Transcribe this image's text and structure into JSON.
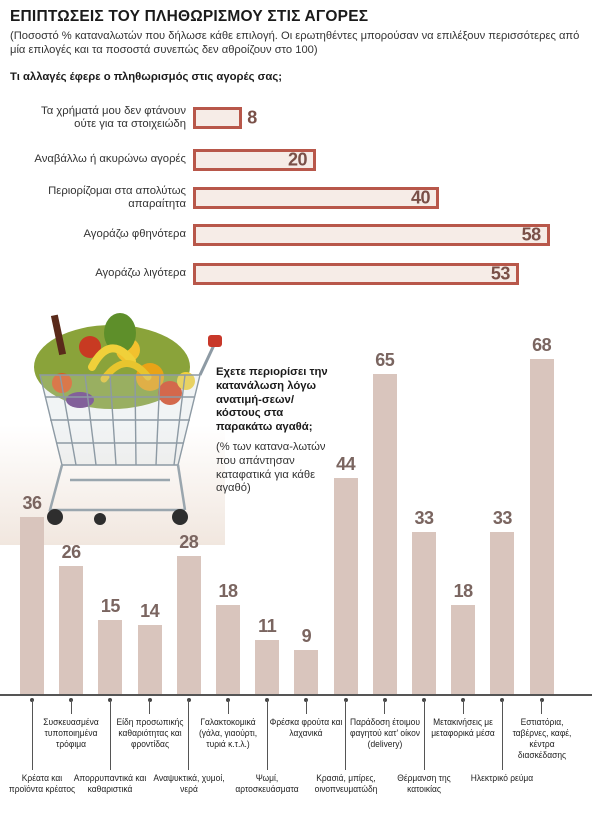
{
  "header": {
    "title": "ΕΠΙΠΤΩΣΕΙΣ ΤΟΥ ΠΛΗΘΩΡΙΣΜΟΥ ΣΤΙΣ ΑΓΟΡΕΣ",
    "subtitle": "(Ποσοστό % καταναλωτών που δήλωσε κάθε επιλογή. Οι ερωτηθέντες μπορούσαν να επιλέξουν περισσότερες από μία επιλογές και τα ποσοστά συνεπώς δεν αθροίζουν στο 100)"
  },
  "colors": {
    "hbar_border": "#b8574a",
    "hbar_fill": "#f6ece7",
    "vbar_fill": "#d9c5bd"
  },
  "chart_data": [
    {
      "type": "bar",
      "orientation": "horizontal",
      "title": "Τι αλλαγές έφερε ο πληθωρισμός στις αγορές σας;",
      "categories": [
        "Τα χρήματά μου δεν φτάνουν ούτε για τα στοιχειώδη",
        "Αναβάλλω ή ακυρώνω αγορές",
        "Περιορίζομαι στα απολύτως απαραίτητα",
        "Αγοράζω φθηνότερα",
        "Αγοράζω λιγότερα"
      ],
      "values": [
        8,
        20,
        40,
        58,
        53
      ],
      "xlim": [
        0,
        60
      ]
    },
    {
      "type": "bar",
      "orientation": "vertical",
      "title": "Εχετε περιορίσει την κατανάλωση λόγω ανατιμή-σεων/κόστους στα παρακάτω αγαθά;",
      "note": "(% των κατανα-λωτών που απάντησαν καταφατικά για κάθε αγαθό)",
      "categories": [
        "Κρέατα και προϊόντα κρέατος",
        "Συσκευασμένα τυποποιημένα τρόφιμα",
        "Απορρυπαντικά και καθαριστικά",
        "Είδη προσωπικής καθαριότητας και φροντίδας",
        "Αναψυκτικά, χυμοί, νερά",
        "Γαλακτοκομικά (γάλα, γιαούρτι, τυριά κ.τ.λ.)",
        "Ψωμί, αρτοσκευάσματα",
        "Φρέσκα φρούτα και λαχανικά",
        "Κρασιά, μπίρες, οινοπνευματώδη",
        "Παράδοση έτοιμου φαγητού κατ' οίκον (delivery)",
        "Θέρμανση της κατοικίας",
        "Μετακινήσεις με μεταφορικά μέσα",
        "Ηλεκτρικό ρεύμα",
        "Εστιατόρια, ταβέρνες, καφέ, κέντρα διασκέδασης"
      ],
      "values": [
        36,
        26,
        15,
        14,
        28,
        18,
        11,
        9,
        44,
        65,
        33,
        18,
        33,
        68
      ],
      "ylim": [
        0,
        68
      ]
    }
  ]
}
